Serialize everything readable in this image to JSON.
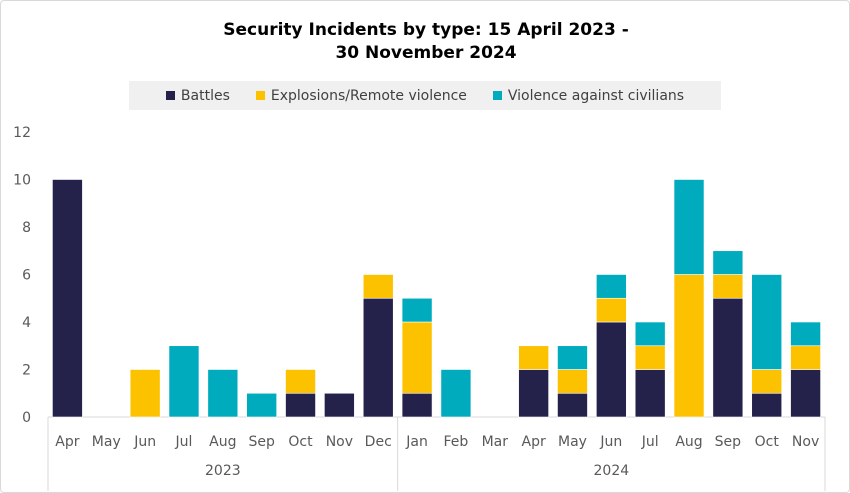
{
  "chart_data": {
    "type": "bar",
    "stacked": true,
    "title_lines": [
      "Security Incidents by type: 15 April 2023 -",
      "30 November 2024"
    ],
    "categories": [
      "Apr",
      "May",
      "Jun",
      "Jul",
      "Aug",
      "Sep",
      "Oct",
      "Nov",
      "Dec",
      "Jan",
      "Feb",
      "Mar",
      "Apr",
      "May",
      "Jun",
      "Jul",
      "Aug",
      "Sep",
      "Oct",
      "Nov"
    ],
    "groups": [
      {
        "label": "2023",
        "count": 9
      },
      {
        "label": "2024",
        "count": 11
      }
    ],
    "series": [
      {
        "name": "Battles",
        "color": "#24224a",
        "values": [
          10,
          0,
          0,
          0,
          0,
          0,
          1,
          1,
          5,
          1,
          0,
          0,
          2,
          1,
          4,
          2,
          0,
          5,
          1,
          2
        ]
      },
      {
        "name": "Explosions/Remote violence",
        "color": "#fcc200",
        "values": [
          0,
          0,
          2,
          0,
          0,
          0,
          1,
          0,
          1,
          3,
          0,
          0,
          1,
          1,
          1,
          1,
          6,
          1,
          1,
          1
        ]
      },
      {
        "name": "Violence against civilians",
        "color": "#00abbd",
        "values": [
          0,
          0,
          0,
          3,
          2,
          1,
          0,
          0,
          0,
          1,
          2,
          0,
          0,
          1,
          1,
          1,
          4,
          1,
          4,
          1
        ]
      }
    ],
    "yticks": [
      "0",
      "2",
      "4",
      "6",
      "8",
      "10",
      "12"
    ],
    "ylim": [
      0,
      12
    ],
    "grid": false,
    "legend_position": "top"
  }
}
